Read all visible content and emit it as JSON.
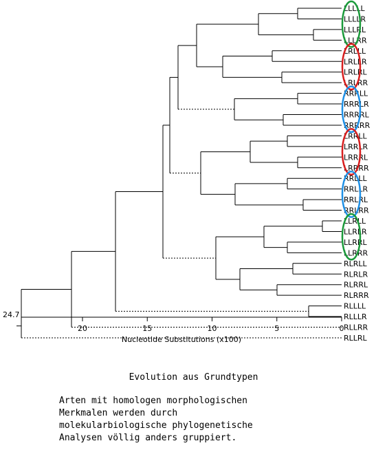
{
  "tree": {
    "leaves": [
      "LLLLL",
      "LLLLR",
      "LLLRL",
      "LLLRR",
      "LRLLL",
      "LRLLR",
      "LRLRL",
      "LRLRR",
      "RRRLL",
      "RRRLR",
      "RRRRL",
      "RRRRR",
      "LRRLL",
      "LRRLR",
      "LRRRL",
      "LRRRR",
      "RRLLL",
      "RRLLR",
      "RRLRL",
      "RRLRR",
      "LLRLL",
      "LLRLR",
      "LLRRL",
      "LLRRR",
      "RLRLL",
      "RLRLR",
      "RLRRL",
      "RLRRR",
      "RLLLL",
      "RLLLR",
      "RLLRR",
      "RLLRL"
    ],
    "root_value": "24.7",
    "axis_ticks": [
      "20",
      "15",
      "10",
      "5",
      "0"
    ],
    "axis_title": "Nucleotide Substitutions (x100)",
    "highlight_colors": {
      "green": "#1a9a3a",
      "red": "#d81e1e",
      "blue": "#1e90e6"
    }
  },
  "caption": {
    "title": "Evolution aus Grundtypen",
    "lines": [
      "Arten mit homologen morphologischen",
      "Merkmalen werden durch",
      "molekularbiologische phylogenetische",
      "Analysen völlig anders gruppiert."
    ]
  }
}
